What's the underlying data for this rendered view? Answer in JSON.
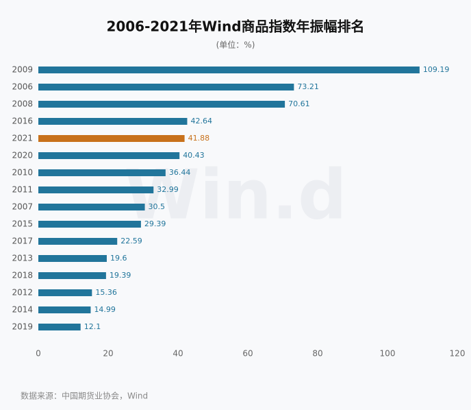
{
  "chart_data": {
    "type": "bar",
    "orientation": "horizontal",
    "title": "2006-2021年Wind商品指数年振幅排名",
    "subtitle": "(单位：%)",
    "watermark": "Win.d",
    "source": "数据来源：中国期货业协会，Wind",
    "categories": [
      "2009",
      "2006",
      "2008",
      "2016",
      "2021",
      "2020",
      "2010",
      "2011",
      "2007",
      "2015",
      "2017",
      "2013",
      "2018",
      "2012",
      "2014",
      "2019"
    ],
    "values": [
      109.19,
      73.21,
      70.61,
      42.64,
      41.88,
      40.43,
      36.44,
      32.99,
      30.5,
      29.39,
      22.59,
      19.6,
      19.39,
      15.36,
      14.99,
      12.1
    ],
    "colors": [
      "#21759b",
      "#21759b",
      "#21759b",
      "#21759b",
      "#c8711b",
      "#21759b",
      "#21759b",
      "#21759b",
      "#21759b",
      "#21759b",
      "#21759b",
      "#21759b",
      "#21759b",
      "#21759b",
      "#21759b",
      "#21759b"
    ],
    "xlim": [
      0,
      120
    ],
    "xticks": [
      0,
      20,
      40,
      60,
      80,
      100,
      120
    ],
    "grid": false
  }
}
